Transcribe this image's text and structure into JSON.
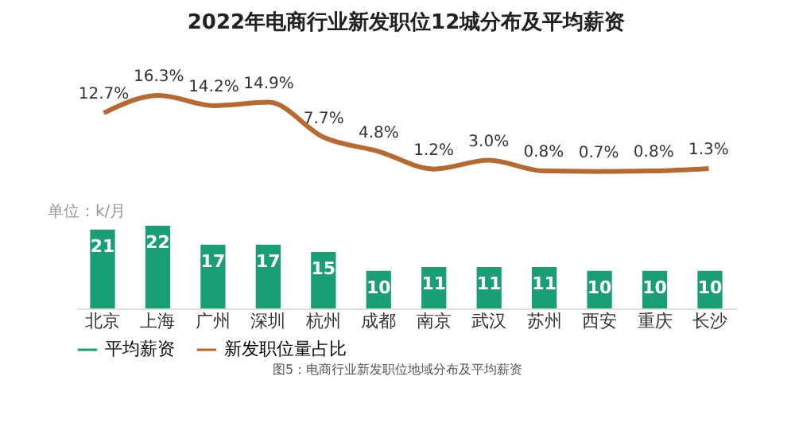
{
  "chart_data": [
    {
      "type": "line",
      "title": "2022年电商行业新发职位12城分布及平均薪资",
      "categories": [
        null,
        null,
        null,
        null,
        null,
        null,
        null,
        null,
        null,
        null,
        null,
        null
      ],
      "series": [
        {
          "name": "新发职位量占比",
          "type": "line",
          "color": "#b8692f",
          "values": [
            12.7,
            16.3,
            14.2,
            14.9,
            7.7,
            4.8,
            1.2,
            3.0,
            0.8,
            0.7,
            0.8,
            1.3
          ],
          "value_labels": [
            "12.7%",
            "16.3%",
            "14.2%",
            "14.9%",
            "7.7%",
            "4.8%",
            "1.2%",
            "3.0%",
            "0.8%",
            "0.7%",
            "0.8%",
            "1.3%"
          ]
        }
      ],
      "legend": "bottom",
      "tick_labels": false
    },
    {
      "type": "bar",
      "categories": [
        "北京",
        "上海",
        "广州",
        "深圳",
        "杭州",
        "成都",
        "南京",
        "武汉",
        "苏州",
        "西安",
        "重庆",
        "长沙"
      ],
      "series": [
        {
          "name": "平均薪资",
          "type": "bar",
          "color": "#1a9e74",
          "values": [
            21,
            22,
            17,
            17,
            15,
            10,
            11,
            11,
            11,
            10,
            10,
            10
          ]
        }
      ],
      "data_labels": true,
      "legend": "bottom",
      "tick_labels": "x",
      "annotations": [
        "单位：k/月",
        "图5：电商行业新发职位地域分布及平均薪资"
      ]
    }
  ]
}
